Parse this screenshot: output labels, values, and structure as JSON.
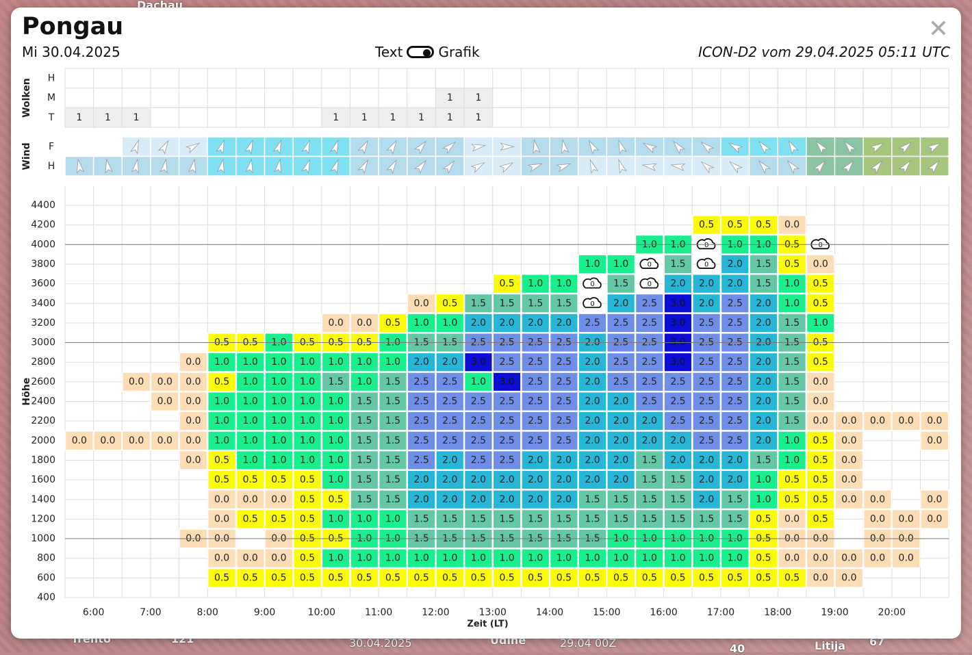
{
  "map": {
    "labels": [
      {
        "name": "map-label-trento",
        "text": "Trento"
      },
      {
        "name": "map-label-121",
        "text": "121"
      },
      {
        "name": "map-label-udine",
        "text": "Udine"
      },
      {
        "name": "map-label-40",
        "text": "40"
      },
      {
        "name": "map-label-litija",
        "text": "Litija"
      },
      {
        "name": "map-label-67",
        "text": "67"
      },
      {
        "name": "map-label-dachau",
        "text": "Dachau"
      }
    ],
    "footer_date": "30.04.2025",
    "footer_time": "29.04 00Z"
  },
  "header": {
    "title": "Pongau",
    "date": "Mi 30.04.2025",
    "toggle_left": "Text",
    "toggle_right": "Grafik",
    "model_info": "ICON-D2 vom 29.04.2025 05:11 UTC",
    "close_symbol": "✕"
  },
  "colors": {
    "0.0": "#fcddb5",
    "0.5": "#fbfb07",
    "1.0": "#1aef8e",
    "1.5": "#64c7a6",
    "2.0": "#27b6d6",
    "2.5": "#6f8ee8",
    "3.0": "#0d0dd8",
    "cloud_cell": "#eeeeee",
    "wind_light": "#d7ecf6",
    "wind_mid": "#b4dcec",
    "wind_cyan": "#7fe1f2",
    "wind_green": "#8bc4a2",
    "wind_olive": "#a6c67e"
  },
  "chart_data": {
    "type": "table",
    "x_label": "Zeit (LT)",
    "y_label": "Höhe",
    "time_ticks": [
      "6:00",
      "7:00",
      "8:00",
      "9:00",
      "10:00",
      "11:00",
      "12:00",
      "13:00",
      "14:00",
      "15:00",
      "16:00",
      "17:00",
      "18:00",
      "19:00",
      "20:00"
    ],
    "heights": [
      4400,
      4200,
      4000,
      3800,
      3600,
      3400,
      3200,
      3000,
      2800,
      2600,
      2400,
      2200,
      2000,
      1800,
      1600,
      1400,
      1200,
      1000,
      800,
      600,
      400
    ],
    "columns": 31,
    "clouds": {
      "label": "Wolken",
      "rows": [
        "H",
        "M",
        "T"
      ],
      "values": [
        [
          "",
          "",
          "",
          "",
          "",
          "",
          "",
          "",
          "",
          "",
          "",
          "",
          "",
          "",
          "",
          "",
          "",
          "",
          "",
          "",
          "",
          "",
          "",
          "",
          "",
          "",
          "",
          "",
          "",
          "",
          ""
        ],
        [
          "",
          "",
          "",
          "",
          "",
          "",
          "",
          "",
          "",
          "",
          "",
          "",
          "",
          "1",
          "1",
          "",
          "",
          "",
          "",
          "",
          "",
          "",
          "",
          "",
          "",
          "",
          "",
          "",
          "",
          "",
          ""
        ],
        [
          "1",
          "1",
          "1",
          "",
          "",
          "",
          "",
          "",
          "",
          "1",
          "1",
          "1",
          "1",
          "1",
          "1",
          "",
          "",
          "",
          "",
          "",
          "",
          "",
          "",
          "",
          "",
          "",
          "",
          "",
          "",
          "",
          ""
        ]
      ]
    },
    "wind": {
      "label": "Wind",
      "rows": [
        "F",
        "H"
      ],
      "directions": [
        [
          null,
          null,
          20,
          30,
          60,
          20,
          20,
          20,
          20,
          20,
          30,
          30,
          40,
          50,
          80,
          90,
          -10,
          -10,
          -30,
          -20,
          -60,
          -40,
          -50,
          -60,
          -40,
          -30,
          -40,
          -40,
          60,
          50,
          60
        ],
        [
          -10,
          -10,
          10,
          10,
          10,
          10,
          10,
          10,
          20,
          20,
          30,
          30,
          40,
          40,
          60,
          60,
          70,
          70,
          -20,
          -20,
          -80,
          -80,
          -50,
          -50,
          -40,
          -40,
          40,
          40,
          40,
          40,
          40
        ]
      ],
      "colors": [
        [
          "none",
          "none",
          "wind_light",
          "wind_light",
          "wind_light",
          "wind_cyan",
          "wind_cyan",
          "wind_cyan",
          "wind_cyan",
          "wind_cyan",
          "wind_mid",
          "wind_mid",
          "wind_mid",
          "wind_mid",
          "wind_light",
          "wind_light",
          "wind_mid",
          "wind_mid",
          "wind_mid",
          "wind_mid",
          "wind_mid",
          "wind_mid",
          "wind_mid",
          "wind_cyan",
          "wind_cyan",
          "wind_cyan",
          "wind_green",
          "wind_green",
          "wind_olive",
          "wind_olive",
          "wind_olive"
        ],
        [
          "wind_mid",
          "wind_mid",
          "wind_mid",
          "wind_mid",
          "wind_mid",
          "wind_cyan",
          "wind_cyan",
          "wind_cyan",
          "wind_cyan",
          "wind_cyan",
          "wind_mid",
          "wind_mid",
          "wind_mid",
          "wind_mid",
          "wind_light",
          "wind_light",
          "wind_mid",
          "wind_mid",
          "wind_light",
          "wind_light",
          "wind_light",
          "wind_light",
          "wind_light",
          "wind_light",
          "wind_mid",
          "wind_mid",
          "wind_green",
          "wind_green",
          "wind_olive",
          "wind_olive",
          "wind_olive"
        ]
      ]
    },
    "thermal_grid_bottom_to_top": [
      [
        "",
        "",
        "",
        "",
        "",
        "0.5",
        "0.5",
        "0.5",
        "0.5",
        "0.5",
        "0.5",
        "0.5",
        "0.5",
        "0.5",
        "0.5",
        "0.5",
        "0.5",
        "0.5",
        "0.5",
        "0.5",
        "0.5",
        "0.5",
        "0.5",
        "0.5",
        "0.5",
        "0.5",
        "0.0",
        "0.0",
        "",
        "",
        ""
      ],
      [
        "",
        "",
        "",
        "",
        "",
        "0.0",
        "0.0",
        "0.0",
        "0.5",
        "1.0",
        "1.0",
        "1.0",
        "1.0",
        "1.0",
        "1.0",
        "1.0",
        "1.0",
        "1.0",
        "1.0",
        "1.0",
        "1.0",
        "1.0",
        "1.0",
        "1.0",
        "0.5",
        "0.0",
        "0.0",
        "0.0",
        "0.0",
        "0.0",
        ""
      ],
      [
        "",
        "",
        "",
        "",
        "0.0",
        "0.0",
        "",
        "0.0",
        "0.5",
        "0.5",
        "1.0",
        "1.0",
        "1.5",
        "1.5",
        "1.5",
        "1.5",
        "1.5",
        "1.5",
        "1.5",
        "1.0",
        "1.0",
        "1.0",
        "1.0",
        "1.0",
        "0.5",
        "0.0",
        "0.0",
        "",
        "0.0",
        "0.0",
        ""
      ],
      [
        "",
        "",
        "",
        "",
        "",
        "0.0",
        "0.5",
        "0.5",
        "0.5",
        "1.0",
        "1.0",
        "1.0",
        "1.5",
        "1.5",
        "1.5",
        "1.5",
        "1.5",
        "1.5",
        "1.5",
        "1.5",
        "1.5",
        "1.5",
        "1.5",
        "1.5",
        "0.5",
        "0.0",
        "0.5",
        "",
        "0.0",
        "0.0",
        "0.0"
      ],
      [
        "",
        "",
        "",
        "",
        "",
        "0.0",
        "0.0",
        "0.0",
        "0.5",
        "0.5",
        "1.5",
        "1.5",
        "2.0",
        "2.0",
        "2.0",
        "2.0",
        "2.0",
        "2.0",
        "1.5",
        "1.5",
        "1.5",
        "1.5",
        "2.0",
        "1.5",
        "1.0",
        "0.5",
        "0.5",
        "0.0",
        "0.0",
        "",
        "0.0"
      ],
      [
        "",
        "",
        "",
        "",
        "",
        "0.5",
        "0.5",
        "0.5",
        "0.5",
        "1.0",
        "1.5",
        "1.5",
        "2.0",
        "2.0",
        "2.0",
        "2.0",
        "2.0",
        "2.0",
        "2.0",
        "2.0",
        "1.5",
        "1.5",
        "2.0",
        "2.0",
        "1.0",
        "0.5",
        "0.5",
        "0.0",
        "",
        "",
        ""
      ],
      [
        "",
        "",
        "",
        "",
        "0.0",
        "0.5",
        "1.0",
        "1.0",
        "1.0",
        "1.0",
        "1.5",
        "1.5",
        "2.5",
        "2.0",
        "2.5",
        "2.5",
        "2.0",
        "2.0",
        "2.0",
        "2.0",
        "1.5",
        "2.0",
        "2.0",
        "2.0",
        "1.5",
        "1.0",
        "0.5",
        "0.0",
        "",
        "",
        ""
      ],
      [
        "0.0",
        "0.0",
        "0.0",
        "0.0",
        "0.0",
        "1.0",
        "1.0",
        "1.0",
        "1.0",
        "1.0",
        "1.5",
        "1.5",
        "2.5",
        "2.5",
        "2.5",
        "2.5",
        "2.5",
        "2.5",
        "2.0",
        "2.0",
        "2.0",
        "2.0",
        "2.5",
        "2.5",
        "2.0",
        "1.0",
        "0.5",
        "0.0",
        "",
        "",
        "0.0"
      ],
      [
        "",
        "",
        "",
        "",
        "0.0",
        "1.0",
        "1.0",
        "1.0",
        "1.0",
        "1.0",
        "1.5",
        "1.5",
        "2.5",
        "2.5",
        "2.5",
        "2.5",
        "2.5",
        "2.5",
        "2.0",
        "2.0",
        "2.0",
        "2.5",
        "2.5",
        "2.5",
        "2.0",
        "1.5",
        "0.0",
        "0.0",
        "0.0",
        "0.0",
        "0.0"
      ],
      [
        "",
        "",
        "",
        "0.0",
        "0.0",
        "1.0",
        "1.0",
        "1.0",
        "1.0",
        "1.0",
        "1.5",
        "1.5",
        "2.5",
        "2.5",
        "2.5",
        "2.5",
        "2.5",
        "2.5",
        "2.0",
        "2.0",
        "2.5",
        "2.5",
        "2.5",
        "2.5",
        "2.0",
        "1.5",
        "0.0",
        "",
        "",
        "",
        ""
      ],
      [
        "",
        "",
        "0.0",
        "0.0",
        "0.0",
        "0.5",
        "1.0",
        "1.0",
        "1.0",
        "1.5",
        "1.0",
        "1.5",
        "2.5",
        "2.5",
        "1.0",
        "3.0",
        "2.5",
        "2.5",
        "2.0",
        "2.5",
        "2.5",
        "2.5",
        "2.5",
        "2.5",
        "2.0",
        "1.5",
        "0.0",
        "",
        "",
        "",
        ""
      ],
      [
        "",
        "",
        "",
        "",
        "0.0",
        "1.0",
        "1.0",
        "1.0",
        "1.0",
        "1.0",
        "1.0",
        "1.0",
        "2.0",
        "2.0",
        "3.0",
        "2.5",
        "2.5",
        "2.5",
        "2.0",
        "2.5",
        "2.5",
        "3.0",
        "2.5",
        "2.5",
        "2.0",
        "1.5",
        "0.5",
        "",
        "",
        "",
        ""
      ],
      [
        "",
        "",
        "",
        "",
        "",
        "0.5",
        "0.5",
        "1.0",
        "0.5",
        "0.5",
        "0.5",
        "1.0",
        "1.5",
        "1.5",
        "2.5",
        "2.5",
        "2.5",
        "2.5",
        "2.0",
        "2.5",
        "2.5",
        "3.0",
        "2.5",
        "2.5",
        "2.0",
        "1.5",
        "0.5",
        "",
        "",
        "",
        ""
      ],
      [
        "",
        "",
        "",
        "",
        "",
        "",
        "",
        "",
        "",
        "0.0",
        "0.0",
        "0.5",
        "1.0",
        "1.0",
        "2.0",
        "2.0",
        "2.0",
        "2.0",
        "2.5",
        "2.5",
        "2.5",
        "3.0",
        "2.5",
        "2.5",
        "2.0",
        "1.5",
        "1.0",
        "",
        "",
        "",
        ""
      ],
      [
        "",
        "",
        "",
        "",
        "",
        "",
        "",
        "",
        "",
        "",
        "",
        "",
        "0.0",
        "0.5",
        "1.5",
        "1.5",
        "1.5",
        "1.5",
        "C",
        "2.0",
        "2.5",
        "3.0",
        "2.0",
        "2.5",
        "2.0",
        "1.0",
        "0.5",
        "",
        "",
        "",
        ""
      ],
      [
        "",
        "",
        "",
        "",
        "",
        "",
        "",
        "",
        "",
        "",
        "",
        "",
        "",
        "",
        "",
        "0.5",
        "1.0",
        "1.0",
        "C",
        "1.5",
        "C",
        "2.0",
        "2.0",
        "2.0",
        "1.5",
        "1.0",
        "0.5",
        "",
        "",
        "",
        ""
      ],
      [
        "",
        "",
        "",
        "",
        "",
        "",
        "",
        "",
        "",
        "",
        "",
        "",
        "",
        "",
        "",
        "",
        "",
        "",
        "1.0",
        "1.0",
        "C",
        "1.5",
        "C",
        "2.0",
        "1.5",
        "0.5",
        "0.0",
        "",
        "",
        "",
        ""
      ],
      [
        "",
        "",
        "",
        "",
        "",
        "",
        "",
        "",
        "",
        "",
        "",
        "",
        "",
        "",
        "",
        "",
        "",
        "",
        "",
        "",
        "1.0",
        "1.0",
        "C",
        "1.0",
        "1.0",
        "0.5",
        "C",
        "",
        "",
        "",
        ""
      ],
      [
        "",
        "",
        "",
        "",
        "",
        "",
        "",
        "",
        "",
        "",
        "",
        "",
        "",
        "",
        "",
        "",
        "",
        "",
        "",
        "",
        "",
        "",
        "0.5",
        "0.5",
        "0.5",
        "0.0",
        "",
        "",
        "",
        "",
        ""
      ],
      [
        "",
        "",
        "",
        "",
        "",
        "",
        "",
        "",
        "",
        "",
        "",
        "",
        "",
        "",
        "",
        "",
        "",
        "",
        "",
        "",
        "",
        "",
        "",
        "",
        "",
        "",
        "",
        "",
        "",
        "",
        ""
      ],
      [
        "",
        "",
        "",
        "",
        "",
        "",
        "",
        "",
        "",
        "",
        "",
        "",
        "",
        "",
        "",
        "",
        "",
        "",
        "",
        "",
        "",
        "",
        "",
        "",
        "",
        "",
        "",
        "",
        "",
        "",
        ""
      ]
    ]
  }
}
